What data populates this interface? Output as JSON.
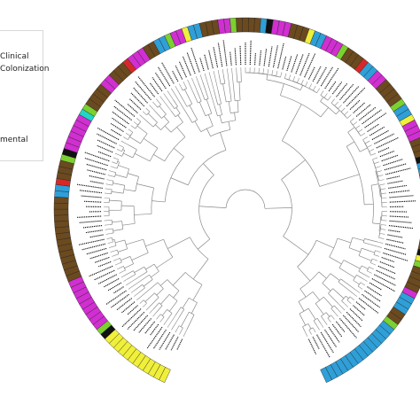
{
  "legend": {
    "entries": [
      {
        "label": "Clinical",
        "color": "#e6e600"
      },
      {
        "label": "Colonization",
        "color": "#2f9fd8"
      },
      {
        "label": "mental",
        "color": "#6b4a1f"
      }
    ]
  },
  "palette": {
    "magenta": "#d12fd1",
    "brown": "#6b4a1f",
    "blue": "#2f9fd8",
    "yellow": "#f0ef3a",
    "green": "#7bd12f",
    "red": "#d62828",
    "black": "#111111",
    "cyan": "#21d6c6",
    "tree_line": "#8a8a8a",
    "label_text": "#111111"
  },
  "ring_segments": [
    {
      "color": "yellow",
      "count": 12
    },
    {
      "color": "black",
      "count": 1
    },
    {
      "color": "green",
      "count": 1
    },
    {
      "color": "magenta",
      "count": 9
    },
    {
      "color": "brown",
      "count": 14
    },
    {
      "color": "blue",
      "count": 2
    },
    {
      "color": "red",
      "count": 1
    },
    {
      "color": "brown",
      "count": 3
    },
    {
      "color": "green",
      "count": 1
    },
    {
      "color": "black",
      "count": 1
    },
    {
      "color": "magenta",
      "count": 6
    },
    {
      "color": "cyan",
      "count": 1
    },
    {
      "color": "green",
      "count": 1
    },
    {
      "color": "brown",
      "count": 4
    },
    {
      "color": "magenta",
      "count": 2
    },
    {
      "color": "brown",
      "count": 3
    },
    {
      "color": "red",
      "count": 1
    },
    {
      "color": "magenta",
      "count": 3
    },
    {
      "color": "brown",
      "count": 2
    },
    {
      "color": "blue",
      "count": 2
    },
    {
      "color": "green",
      "count": 1
    },
    {
      "color": "magenta",
      "count": 2
    },
    {
      "color": "yellow",
      "count": 1
    },
    {
      "color": "blue",
      "count": 2
    },
    {
      "color": "brown",
      "count": 3
    },
    {
      "color": "magenta",
      "count": 2
    },
    {
      "color": "green",
      "count": 1
    },
    {
      "color": "brown",
      "count": 4
    },
    {
      "color": "blue",
      "count": 1
    },
    {
      "color": "black",
      "count": 1
    },
    {
      "color": "magenta",
      "count": 3
    },
    {
      "color": "brown",
      "count": 3
    },
    {
      "color": "yellow",
      "count": 1
    },
    {
      "color": "blue",
      "count": 2
    },
    {
      "color": "magenta",
      "count": 3
    },
    {
      "color": "green",
      "count": 1
    },
    {
      "color": "brown",
      "count": 3
    },
    {
      "color": "red",
      "count": 1
    },
    {
      "color": "blue",
      "count": 2
    },
    {
      "color": "magenta",
      "count": 2
    },
    {
      "color": "brown",
      "count": 4
    },
    {
      "color": "green",
      "count": 1
    },
    {
      "color": "blue",
      "count": 2
    },
    {
      "color": "yellow",
      "count": 1
    },
    {
      "color": "magenta",
      "count": 3
    },
    {
      "color": "brown",
      "count": 3
    },
    {
      "color": "black",
      "count": 1
    },
    {
      "color": "blue",
      "count": 2
    },
    {
      "color": "magenta",
      "count": 2
    },
    {
      "color": "brown",
      "count": 5
    },
    {
      "color": "green",
      "count": 1
    },
    {
      "color": "blue",
      "count": 2
    },
    {
      "color": "brown",
      "count": 3
    },
    {
      "color": "black",
      "count": 1
    },
    {
      "color": "yellow",
      "count": 1
    },
    {
      "color": "green",
      "count": 1
    },
    {
      "color": "brown",
      "count": 4
    },
    {
      "color": "magenta",
      "count": 1
    },
    {
      "color": "blue",
      "count": 3
    },
    {
      "color": "brown",
      "count": 2
    },
    {
      "color": "green",
      "count": 1
    },
    {
      "color": "blue",
      "count": 14
    }
  ]
}
